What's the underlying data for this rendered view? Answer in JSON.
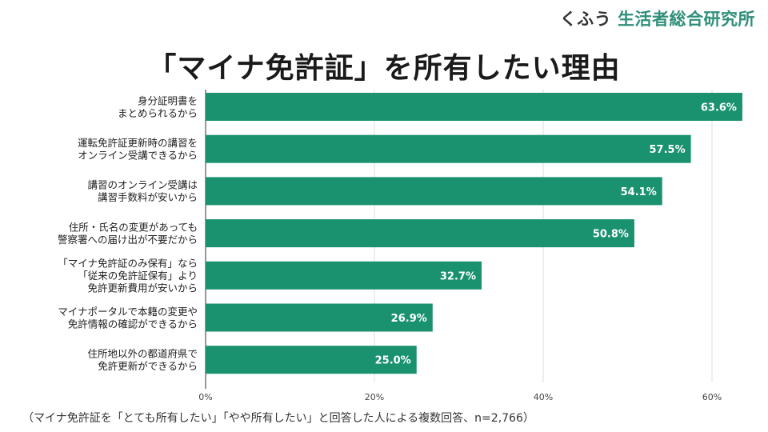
{
  "logo": {
    "prefix": "くふう",
    "name": "生活者総合研究所"
  },
  "chart_data": {
    "type": "bar",
    "orientation": "horizontal",
    "title": "「マイナ免許証」を所有したい理由",
    "categories": [
      [
        "身分証明書を",
        "まとめられるから"
      ],
      [
        "運転免許証更新時の講習を",
        "オンライン受講できるから"
      ],
      [
        "講習のオンライン受講は",
        "講習手数料が安いから"
      ],
      [
        "住所・氏名の変更があっても",
        "警察署への届け出が不要だから"
      ],
      [
        "「マイナ免許証のみ保有」なら",
        "「従来の免許証保有」より",
        "免許更新費用が安いから"
      ],
      [
        "マイナポータルで本籍の変更や",
        "免許情報の確認ができるから"
      ],
      [
        "住所地以外の都道府県で",
        "免許更新ができるから"
      ]
    ],
    "values": [
      63.6,
      57.5,
      54.1,
      50.8,
      32.7,
      26.9,
      25.0
    ],
    "data_labels": [
      "63.6%",
      "57.5%",
      "54.1%",
      "50.8%",
      "32.7%",
      "26.9%",
      "25.0%"
    ],
    "xlim": [
      0,
      65
    ],
    "xticks": [
      0,
      20,
      40,
      60
    ],
    "xtick_labels": [
      "0%",
      "20%",
      "40%",
      "60%"
    ],
    "grid": true,
    "bar_color": "#1a9270",
    "footnote": "（マイナ免許証を「とても所有したい」「やや所有したい」と回答した人による複数回答、n=2,766）"
  }
}
